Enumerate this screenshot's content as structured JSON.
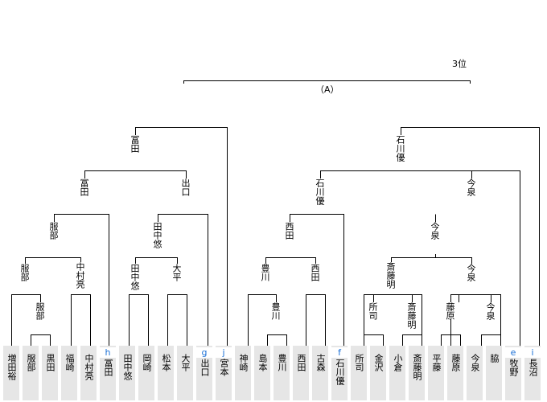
{
  "place_label": "3位",
  "final_label": "（A）",
  "players": [
    {
      "name": "増田裕",
      "seed": ""
    },
    {
      "name": "服部",
      "seed": ""
    },
    {
      "name": "黒田",
      "seed": ""
    },
    {
      "name": "福崎",
      "seed": ""
    },
    {
      "name": "中村亮",
      "seed": ""
    },
    {
      "name": "冨田",
      "seed": "h"
    },
    {
      "name": "田中悠",
      "seed": ""
    },
    {
      "name": "岡崎",
      "seed": ""
    },
    {
      "name": "松本",
      "seed": ""
    },
    {
      "name": "大平",
      "seed": ""
    },
    {
      "name": "出口",
      "seed": "g"
    },
    {
      "name": "宮本",
      "seed": "j"
    },
    {
      "name": "神崎",
      "seed": ""
    },
    {
      "name": "島本",
      "seed": ""
    },
    {
      "name": "豊川",
      "seed": ""
    },
    {
      "name": "西田",
      "seed": ""
    },
    {
      "name": "古森",
      "seed": ""
    },
    {
      "name": "石川優",
      "seed": "f"
    },
    {
      "name": "所司",
      "seed": ""
    },
    {
      "name": "金沢",
      "seed": ""
    },
    {
      "name": "小倉",
      "seed": ""
    },
    {
      "name": "斎藤明",
      "seed": ""
    },
    {
      "name": "平藤",
      "seed": ""
    },
    {
      "name": "藤原",
      "seed": ""
    },
    {
      "name": "今泉",
      "seed": ""
    },
    {
      "name": "脇",
      "seed": ""
    },
    {
      "name": "牧野",
      "seed": "e"
    },
    {
      "name": "長沼",
      "seed": "i"
    }
  ],
  "winners": {
    "r1_hattori": "服部",
    "r2_hattori": "服部",
    "r2_nakamura": "中村亮",
    "r2_tanaka": "田中悠",
    "r2_ohira": "大平",
    "r3_hattori": "服部",
    "r3_tanaka": "田中悠",
    "r4_tomita": "冨田",
    "r4_deguchi": "出口",
    "sf_tomita": "冨田",
    "r1_toyokawa": "豊川",
    "r2_toyokawa": "豊川",
    "r2_nishida": "西田",
    "r3_nishida": "西田",
    "r2_shoji": "所司",
    "r2_saito": "斎藤明",
    "r2_fujiwara": "藤原",
    "r2_imaizumi": "今泉",
    "r3_saito": "斎藤明",
    "r3_imaizumi": "今泉",
    "r4_imaizumi": "今泉",
    "r5_ishikawa": "石川優",
    "r5_imaizumi": "今泉",
    "sf_ishikawa": "石川優"
  }
}
